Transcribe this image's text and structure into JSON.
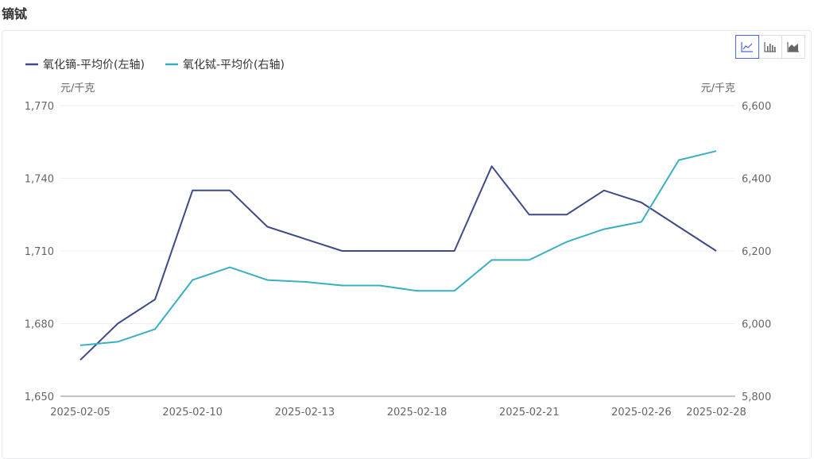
{
  "page": {
    "title": "镝铽"
  },
  "toolbar": {
    "buttons": [
      {
        "name": "line-chart-button",
        "icon": "line-chart-icon",
        "active": true
      },
      {
        "name": "bar-chart-button",
        "icon": "bar-chart-icon",
        "active": false
      },
      {
        "name": "area-chart-button",
        "icon": "area-chart-icon",
        "active": false
      }
    ]
  },
  "chart_data": {
    "type": "line",
    "title": "",
    "xlabel": "",
    "y_left_label": "元/千克",
    "y_right_label": "元/千克",
    "y_left_lim": [
      1650,
      1770
    ],
    "y_left_ticks": [
      1650,
      1680,
      1710,
      1740,
      1770
    ],
    "y_left_tick_labels": [
      "1,650",
      "1,680",
      "1,710",
      "1,740",
      "1,770"
    ],
    "y_right_lim": [
      5800,
      6600
    ],
    "y_right_ticks": [
      5800,
      6000,
      6200,
      6400,
      6600
    ],
    "y_right_tick_labels": [
      "5,800",
      "6,000",
      "6,200",
      "6,400",
      "6,600"
    ],
    "x": [
      "2025-02-05",
      "2025-02-06",
      "2025-02-07",
      "2025-02-10",
      "2025-02-11",
      "2025-02-12",
      "2025-02-13",
      "2025-02-14",
      "2025-02-17",
      "2025-02-18",
      "2025-02-19",
      "2025-02-20",
      "2025-02-21",
      "2025-02-24",
      "2025-02-25",
      "2025-02-26",
      "2025-02-27",
      "2025-02-28"
    ],
    "x_tick_labels": [
      "2025-02-05",
      "2025-02-10",
      "2025-02-13",
      "2025-02-18",
      "2025-02-21",
      "2025-02-26",
      "2025-02-28"
    ],
    "legend_position": "top-left",
    "grid": true,
    "colors": {
      "left": "#3f4a8a",
      "right": "#3aafc4",
      "grid": "#eeeeee",
      "axis": "#888888",
      "tick_text": "#666666"
    },
    "series": [
      {
        "name": "氧化镝-平均价(左轴)",
        "axis": "left",
        "color": "#3f4a8a",
        "values": [
          1665,
          1680,
          1690,
          1735,
          1735,
          1720,
          1715,
          1710,
          1710,
          1710,
          1710,
          1745,
          1725,
          1725,
          1735,
          1730,
          1720,
          1710
        ]
      },
      {
        "name": "氧化铽-平均价(右轴)",
        "axis": "right",
        "color": "#3aafc4",
        "values": [
          5940,
          5950,
          5985,
          6120,
          6155,
          6120,
          6115,
          6105,
          6105,
          6090,
          6090,
          6175,
          6175,
          6225,
          6260,
          6280,
          6450,
          6475
        ]
      }
    ]
  }
}
